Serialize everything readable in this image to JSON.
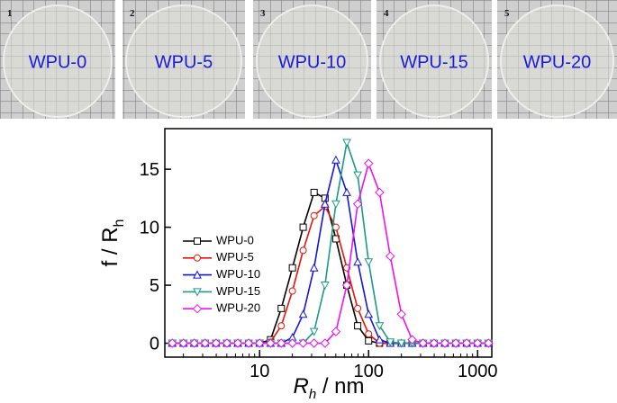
{
  "photos": [
    {
      "number": "1",
      "label": "WPU-0"
    },
    {
      "number": "2",
      "label": "WPU-5"
    },
    {
      "number": "3",
      "label": "WPU-10"
    },
    {
      "number": "4",
      "label": "WPU-15"
    },
    {
      "number": "5",
      "label": "WPU-20"
    }
  ],
  "chart_data": {
    "type": "line",
    "log_x": true,
    "xlabel": {
      "main": "R",
      "sub": "h",
      "rest": " / nm"
    },
    "ylabel": {
      "main": "f / R",
      "sub": "h"
    },
    "xlim": [
      1.35,
      1350
    ],
    "ylim": [
      -1.2,
      18.5
    ],
    "xticks": [
      10,
      100,
      1000
    ],
    "yticks": [
      0,
      5,
      10,
      15
    ],
    "legend": "upper-left",
    "x": [
      1.58,
      2,
      2.51,
      3.16,
      3.98,
      5.01,
      6.31,
      7.94,
      10,
      12.6,
      15.8,
      20,
      25.1,
      31.6,
      39.8,
      50.1,
      63.1,
      79.4,
      100,
      126,
      158,
      200,
      251,
      316,
      398,
      501,
      631,
      794,
      1000,
      1259
    ],
    "series": [
      {
        "name": "WPU-0",
        "color": "#000000",
        "marker": "square",
        "values": [
          0,
          0,
          0,
          0,
          0,
          0,
          0,
          0,
          0,
          0.3,
          3,
          6.5,
          10,
          13,
          12.5,
          9,
          5,
          1.5,
          0.2,
          0,
          0,
          0,
          0,
          0,
          0,
          0,
          0,
          0,
          0,
          0
        ]
      },
      {
        "name": "WPU-5",
        "color": "#e8140c",
        "marker": "circle",
        "values": [
          0,
          0,
          0,
          0,
          0,
          0,
          0,
          0,
          0,
          0.1,
          1.5,
          4.5,
          8,
          11,
          11.8,
          10,
          6.5,
          3,
          0.8,
          0,
          0,
          0,
          0,
          0,
          0,
          0,
          0,
          0,
          0,
          0
        ]
      },
      {
        "name": "WPU-10",
        "color": "#1414e0",
        "marker": "triangle-up",
        "values": [
          0,
          0,
          0,
          0,
          0,
          0,
          0,
          0,
          0,
          0,
          0,
          0.5,
          2.5,
          6.5,
          12,
          15.8,
          13,
          7,
          2.5,
          0.3,
          0,
          0,
          0,
          0,
          0,
          0,
          0,
          0,
          0,
          0
        ]
      },
      {
        "name": "WPU-15",
        "color": "#1a9a88",
        "marker": "triangle-down",
        "values": [
          0,
          0,
          0,
          0,
          0,
          0,
          0,
          0,
          0,
          0,
          0,
          0,
          0,
          1,
          5,
          12,
          17.3,
          14.5,
          7,
          1.5,
          0.1,
          0,
          0,
          0,
          0,
          0,
          0,
          0,
          0,
          0
        ]
      },
      {
        "name": "WPU-20",
        "color": "#f010f0",
        "marker": "diamond",
        "values": [
          0,
          0,
          0,
          0,
          0,
          0,
          0,
          0,
          0,
          0,
          0,
          0,
          0,
          0,
          0,
          1,
          5,
          12,
          15.5,
          13,
          7.5,
          2.5,
          0.3,
          0,
          0,
          0,
          0,
          0,
          0,
          0
        ]
      }
    ]
  }
}
